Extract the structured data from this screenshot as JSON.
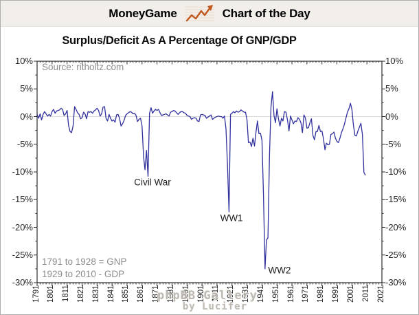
{
  "header": {
    "brand": "MoneyGame",
    "brand_color": "#c0561c",
    "title": "Chart of the Day",
    "title_color": "#15150f",
    "bg": "#f2efeb",
    "icon": "line-chart-icon"
  },
  "watermark": {
    "line1": "phpBB Gallery",
    "line2": "by Lucifer"
  },
  "chart_data": {
    "type": "line",
    "title": "Surplus/Deficit As A Percentage Of GNP/GDP",
    "source": "Source: ritholtz.com",
    "notes": [
      "1791 to 1928 = GNP",
      "1929 to 2010 - GDP"
    ],
    "line_color": "#30309e",
    "axis_color": "#2a2a2a",
    "zero_grid_color": "#dcdcdc",
    "label_color": "#262626",
    "muted_color": "#8c8c8c",
    "xlim": [
      1791,
      2021
    ],
    "ylim": [
      -30,
      10
    ],
    "x_tick_step": 10,
    "x_minor_step": 2,
    "y_tick_step": 5,
    "y_minor_step": 2.5,
    "grid": "zero-line-only",
    "legend": "none",
    "y_tick_labels": [
      "10%",
      "5%",
      "0%",
      "-5%",
      "-10%",
      "-15%",
      "-20%",
      "-25%",
      "-30%"
    ],
    "x_tick_labels": [
      "1791",
      "1801",
      "1811",
      "1821",
      "1831",
      "1841",
      "1851",
      "1861",
      "1871",
      "1881",
      "1891",
      "1901",
      "1911",
      "1921",
      "1931",
      "1941",
      "1951",
      "1961",
      "1971",
      "1981",
      "1991",
      "2001",
      "2011",
      "2021"
    ],
    "annotations": [
      {
        "label": "Civil War",
        "x": 1868,
        "y": -11.9
      },
      {
        "label": "WW1",
        "x": 1920.7,
        "y": -18.3
      },
      {
        "label": "WW2",
        "x": 1952.7,
        "y": -27.8
      }
    ],
    "series": [
      {
        "name": "Surplus/Deficit as % of GNP/GDP",
        "start_year": 1791,
        "end_year": 2010,
        "values": [
          0.4,
          -0.3,
          0.5,
          -0.6,
          0.4,
          0.9,
          0.5,
          0.1,
          0.4,
          0.1,
          0.9,
          1.3,
          0.6,
          1.0,
          1.1,
          1.2,
          1.5,
          1.3,
          0.2,
          0.5,
          1.1,
          -1.6,
          -2.7,
          -2.9,
          -1.7,
          1.8,
          1.3,
          0.7,
          0.4,
          -0.4,
          -0.2,
          0.8,
          0.5,
          -0.4,
          0.9,
          0.8,
          0.9,
          0.6,
          1.0,
          1.2,
          1.5,
          1.1,
          0.1,
          0.5,
          1.7,
          1.8,
          -0.3,
          -0.8,
          0.4,
          -0.3,
          -0.8,
          -0.6,
          -1.0,
          0.3,
          0.4,
          -0.3,
          -1.7,
          -1.3,
          -0.7,
          0.2,
          0.5,
          0.7,
          0.9,
          0.8,
          0.5,
          0.6,
          0.2,
          -0.9,
          -0.5,
          -0.3,
          -1.7,
          -7.2,
          -9.6,
          -6.1,
          -10.8,
          0.6,
          1.6,
          0.6,
          1.0,
          1.3,
          1.1,
          1.3,
          0.7,
          0.2,
          0.3,
          0.4,
          0.5,
          0.3,
          0.1,
          0.8,
          0.9,
          1.1,
          1.0,
          0.7,
          0.4,
          0.7,
          0.9,
          0.9,
          0.7,
          0.6,
          0.2,
          0.1,
          0.0,
          -0.5,
          -0.3,
          -0.2,
          -0.3,
          -0.8,
          -0.9,
          0.3,
          0.4,
          0.3,
          0.2,
          -0.3,
          -0.1,
          0.1,
          0.3,
          -0.5,
          -0.3,
          -0.1,
          0.0,
          0.1,
          0.0,
          0.0,
          -0.3,
          0.1,
          -2.2,
          -8.8,
          -17.2,
          0.4,
          0.6,
          0.9,
          0.7,
          1.0,
          0.8,
          0.9,
          1.2,
          1.0,
          0.8,
          0.8,
          -0.6,
          -4.7,
          -4.6,
          -5.4,
          -3.9,
          -5.3,
          -2.8,
          -0.8,
          -3.1,
          -3.0,
          -4.3,
          -14.2,
          -27.5,
          -22.3,
          -21.9,
          -7.2,
          1.7,
          4.5,
          0.2,
          -1.1,
          1.4,
          -0.4,
          -1.7,
          -0.3,
          -0.8,
          0.9,
          0.8,
          -0.6,
          -2.6,
          0.1,
          -0.6,
          -1.3,
          -0.8,
          -0.9,
          -0.2,
          -0.5,
          -1.1,
          -2.9,
          0.3,
          -0.3,
          -2.1,
          -2.0,
          -1.1,
          -0.4,
          -3.4,
          -4.2,
          -2.7,
          -2.7,
          -1.6,
          -2.7,
          -2.6,
          -4.0,
          -6.0,
          -4.8,
          -5.1,
          -5.0,
          -3.2,
          -3.1,
          -2.8,
          -3.9,
          -4.5,
          -4.7,
          -3.9,
          -2.9,
          -2.2,
          -1.4,
          -0.3,
          0.8,
          1.4,
          2.4,
          1.3,
          -1.5,
          -3.4,
          -3.5,
          -2.6,
          -1.9,
          -1.2,
          -3.2,
          -10.1,
          -10.6
        ]
      }
    ]
  }
}
